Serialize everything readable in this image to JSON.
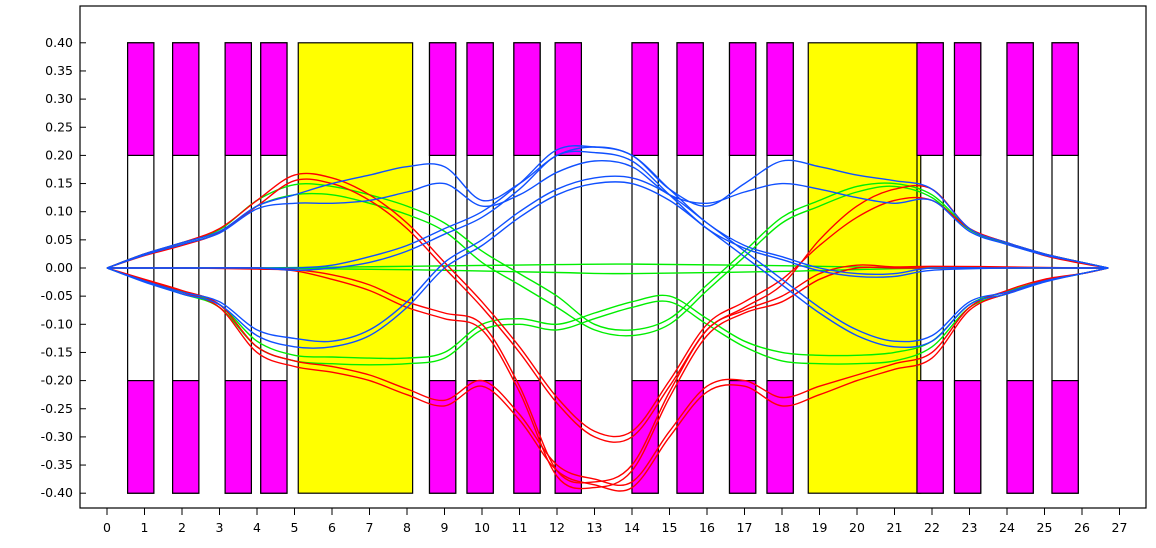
{
  "chart_data": {
    "type": "line",
    "title": "",
    "xlabel": "",
    "ylabel": "",
    "xlim": [
      -0.3,
      27.1
    ],
    "ylim": [
      -0.42,
      0.44
    ],
    "grid": false,
    "x_ticks": [
      0,
      1,
      2,
      3,
      4,
      5,
      6,
      7,
      8,
      9,
      10,
      11,
      12,
      13,
      14,
      15,
      16,
      17,
      18,
      19,
      20,
      21,
      22,
      23,
      24,
      25,
      26,
      27
    ],
    "y_ticks": [
      0.4,
      0.35,
      0.3,
      0.25,
      0.2,
      0.15,
      0.1,
      0.05,
      0.0,
      -0.05,
      -0.1,
      -0.15,
      -0.2,
      -0.25,
      -0.3,
      -0.35,
      -0.4
    ],
    "y_tick_labels": [
      "0.40",
      "0.35",
      "0.30",
      "0.25",
      "0.20",
      "0.15",
      "0.10",
      "0.05",
      "0.00",
      "-0.05",
      "-0.10",
      "-0.15",
      "-0.20",
      "-0.25",
      "-0.30",
      "-0.35",
      "-0.40"
    ],
    "element_colors": {
      "quadrupole": "#ff00ff",
      "dipole": "#ffff00",
      "outline": "#000000"
    },
    "quadrupoles": [
      [
        0.55,
        1.25
      ],
      [
        1.75,
        2.45
      ],
      [
        3.15,
        3.85
      ],
      [
        4.1,
        4.8
      ],
      [
        8.6,
        9.3
      ],
      [
        9.6,
        10.3
      ],
      [
        10.85,
        11.55
      ],
      [
        11.95,
        12.65
      ],
      [
        14.0,
        14.7
      ],
      [
        15.2,
        15.9
      ],
      [
        16.6,
        17.3
      ],
      [
        17.6,
        18.3
      ],
      [
        21.6,
        22.3
      ],
      [
        22.6,
        23.3
      ],
      [
        24.0,
        24.7
      ],
      [
        25.2,
        25.9
      ]
    ],
    "quad_pole_tip": 0.2,
    "quad_aperture": 0.4,
    "dipoles": [
      [
        5.1,
        8.15
      ],
      [
        18.7,
        21.7
      ]
    ],
    "dipole_half_height": 0.4,
    "series": [
      {
        "color": "#ff0000",
        "x": [
          0,
          1,
          2,
          3,
          4,
          5,
          6,
          7,
          8,
          9,
          10,
          11,
          12,
          13,
          14,
          15,
          16,
          17,
          18,
          19,
          20,
          21,
          22,
          23,
          24,
          25,
          26,
          26.7
        ],
        "values": [
          0,
          0.025,
          0.045,
          0.07,
          0.12,
          0.165,
          0.16,
          0.13,
          0.08,
          0.01,
          -0.06,
          -0.14,
          -0.23,
          -0.29,
          -0.29,
          -0.2,
          -0.1,
          -0.06,
          -0.02,
          0.04,
          0.09,
          0.12,
          0.12,
          0.07,
          0.045,
          0.025,
          0.01,
          0
        ]
      },
      {
        "color": "#ff0000",
        "x": [
          0,
          1,
          2,
          3,
          4,
          5,
          6,
          7,
          8,
          9,
          10,
          11,
          12,
          13,
          14,
          15,
          16,
          17,
          18,
          19,
          20,
          21,
          22,
          23,
          24,
          25,
          26,
          26.7
        ],
        "values": [
          0,
          0.022,
          0.04,
          0.063,
          0.11,
          0.155,
          0.15,
          0.12,
          0.07,
          0.0,
          -0.07,
          -0.15,
          -0.24,
          -0.3,
          -0.3,
          -0.21,
          -0.11,
          -0.07,
          -0.03,
          0.05,
          0.11,
          0.14,
          0.14,
          0.07,
          0.045,
          0.022,
          0.008,
          0
        ]
      },
      {
        "color": "#ff0000",
        "x": [
          0,
          1,
          2,
          3,
          4,
          5,
          6,
          7,
          8,
          9,
          10,
          11,
          12,
          13,
          14,
          15,
          16,
          17,
          18,
          19,
          20,
          21,
          22,
          23,
          24,
          25,
          26,
          26.7
        ],
        "values": [
          0,
          -0.02,
          -0.04,
          -0.065,
          -0.14,
          -0.165,
          -0.175,
          -0.19,
          -0.215,
          -0.235,
          -0.2,
          -0.26,
          -0.35,
          -0.375,
          -0.38,
          -0.29,
          -0.21,
          -0.2,
          -0.23,
          -0.21,
          -0.19,
          -0.17,
          -0.15,
          -0.07,
          -0.04,
          -0.02,
          -0.01,
          0
        ]
      },
      {
        "color": "#ff0000",
        "x": [
          0,
          1,
          2,
          3,
          4,
          5,
          6,
          7,
          8,
          9,
          10,
          11,
          12,
          13,
          14,
          15,
          16,
          17,
          18,
          19,
          20,
          21,
          22,
          23,
          24,
          25,
          26,
          26.7
        ],
        "values": [
          0,
          -0.022,
          -0.043,
          -0.07,
          -0.15,
          -0.175,
          -0.185,
          -0.2,
          -0.225,
          -0.245,
          -0.21,
          -0.27,
          -0.36,
          -0.385,
          -0.39,
          -0.3,
          -0.22,
          -0.21,
          -0.245,
          -0.225,
          -0.2,
          -0.18,
          -0.16,
          -0.075,
          -0.045,
          -0.022,
          -0.01,
          0
        ]
      },
      {
        "color": "#ff0000",
        "x": [
          0,
          2,
          4,
          5,
          6,
          7,
          8,
          9,
          10,
          11,
          12,
          13,
          14,
          15,
          16,
          17,
          18,
          19,
          20,
          21,
          22,
          24,
          26,
          26.7
        ],
        "values": [
          0,
          0.0,
          -0.002,
          -0.005,
          -0.02,
          -0.04,
          -0.07,
          -0.09,
          -0.11,
          -0.22,
          -0.37,
          -0.39,
          -0.36,
          -0.23,
          -0.12,
          -0.08,
          -0.06,
          -0.02,
          0.0,
          0.0,
          0.0,
          0.0,
          0.0,
          0
        ]
      },
      {
        "color": "#ff0000",
        "x": [
          0,
          2,
          4,
          5,
          6,
          7,
          8,
          9,
          10,
          11,
          12,
          13,
          14,
          15,
          16,
          17,
          18,
          19,
          20,
          21,
          22,
          24,
          26,
          26.7
        ],
        "values": [
          0,
          0.0,
          0.0,
          -0.003,
          -0.012,
          -0.03,
          -0.06,
          -0.08,
          -0.1,
          -0.21,
          -0.36,
          -0.38,
          -0.35,
          -0.22,
          -0.11,
          -0.075,
          -0.05,
          -0.01,
          0.005,
          0.002,
          0.003,
          0.002,
          0.0,
          0
        ]
      },
      {
        "color": "#00ee00",
        "x": [
          0,
          1,
          2,
          3,
          4,
          5,
          6,
          7,
          8,
          9,
          10,
          11,
          12,
          13,
          14,
          15,
          16,
          17,
          18,
          19,
          20,
          21,
          22,
          23,
          24,
          25,
          26,
          26.7
        ],
        "values": [
          0,
          0.025,
          0.045,
          0.068,
          0.12,
          0.148,
          0.145,
          0.13,
          0.11,
          0.08,
          0.03,
          -0.01,
          -0.05,
          -0.1,
          -0.11,
          -0.09,
          -0.03,
          0.03,
          0.09,
          0.12,
          0.145,
          0.15,
          0.13,
          0.07,
          0.045,
          0.025,
          0.01,
          0
        ]
      },
      {
        "color": "#00ee00",
        "x": [
          0,
          1,
          2,
          3,
          4,
          5,
          6,
          7,
          8,
          9,
          10,
          11,
          12,
          13,
          14,
          15,
          16,
          17,
          18,
          19,
          20,
          21,
          22,
          23,
          24,
          25,
          26,
          26.7
        ],
        "values": [
          0,
          0.023,
          0.042,
          0.063,
          0.11,
          0.13,
          0.13,
          0.115,
          0.095,
          0.065,
          0.01,
          -0.03,
          -0.07,
          -0.11,
          -0.12,
          -0.1,
          -0.04,
          0.02,
          0.08,
          0.11,
          0.135,
          0.145,
          0.125,
          0.068,
          0.043,
          0.023,
          0.01,
          0
        ]
      },
      {
        "color": "#00ee00",
        "x": [
          0,
          1,
          2,
          3,
          4,
          5,
          6,
          7,
          8,
          9,
          10,
          11,
          12,
          13,
          14,
          15,
          16,
          17,
          18,
          19,
          20,
          21,
          22,
          23,
          24,
          25,
          26,
          26.7
        ],
        "values": [
          0,
          -0.022,
          -0.042,
          -0.065,
          -0.13,
          -0.155,
          -0.158,
          -0.16,
          -0.16,
          -0.15,
          -0.1,
          -0.09,
          -0.1,
          -0.08,
          -0.06,
          -0.05,
          -0.09,
          -0.13,
          -0.15,
          -0.155,
          -0.155,
          -0.15,
          -0.13,
          -0.065,
          -0.042,
          -0.022,
          -0.01,
          0
        ]
      },
      {
        "color": "#00ee00",
        "x": [
          0,
          1,
          2,
          3,
          4,
          5,
          6,
          7,
          8,
          9,
          10,
          11,
          12,
          13,
          14,
          15,
          16,
          17,
          18,
          19,
          20,
          21,
          22,
          23,
          24,
          25,
          26,
          26.7
        ],
        "values": [
          0,
          -0.024,
          -0.046,
          -0.07,
          -0.14,
          -0.165,
          -0.17,
          -0.172,
          -0.17,
          -0.16,
          -0.11,
          -0.1,
          -0.11,
          -0.09,
          -0.07,
          -0.06,
          -0.1,
          -0.14,
          -0.165,
          -0.17,
          -0.17,
          -0.165,
          -0.14,
          -0.07,
          -0.046,
          -0.024,
          -0.01,
          0
        ]
      },
      {
        "color": "#00ee00",
        "x": [
          0,
          4,
          8,
          12,
          14,
          18,
          22,
          26,
          26.7
        ],
        "values": [
          0,
          0.0,
          -0.003,
          -0.008,
          -0.01,
          -0.006,
          0.0,
          0.0,
          0
        ]
      },
      {
        "color": "#00ee00",
        "x": [
          0,
          4,
          8,
          12,
          14,
          18,
          22,
          26,
          26.7
        ],
        "values": [
          0,
          0.0,
          0.003,
          0.006,
          0.007,
          0.004,
          0.0,
          0.0,
          0
        ]
      },
      {
        "color": "#1050ff",
        "x": [
          0,
          1,
          2,
          3,
          4,
          5,
          6,
          7,
          8,
          9,
          10,
          11,
          12,
          13,
          14,
          15,
          16,
          17,
          18,
          19,
          20,
          21,
          22,
          23,
          24,
          25,
          26,
          26.7
        ],
        "values": [
          0,
          0.025,
          0.045,
          0.065,
          0.11,
          0.13,
          0.15,
          0.165,
          0.18,
          0.18,
          0.12,
          0.15,
          0.2,
          0.215,
          0.2,
          0.14,
          0.11,
          0.15,
          0.19,
          0.18,
          0.165,
          0.155,
          0.14,
          0.07,
          0.045,
          0.025,
          0.01,
          0
        ]
      },
      {
        "color": "#1050ff",
        "x": [
          0,
          1,
          2,
          3,
          4,
          5,
          6,
          7,
          8,
          9,
          10,
          11,
          12,
          13,
          14,
          15,
          16,
          17,
          18,
          19,
          20,
          21,
          22,
          23,
          24,
          25,
          26,
          26.7
        ],
        "values": [
          0,
          0.023,
          0.042,
          0.062,
          0.105,
          0.115,
          0.115,
          0.12,
          0.135,
          0.15,
          0.11,
          0.13,
          0.17,
          0.19,
          0.18,
          0.13,
          0.115,
          0.135,
          0.15,
          0.14,
          0.125,
          0.115,
          0.12,
          0.065,
          0.042,
          0.023,
          0.01,
          0
        ]
      },
      {
        "color": "#1050ff",
        "x": [
          0,
          1,
          2,
          3,
          4,
          5,
          6,
          7,
          8,
          9,
          10,
          11,
          12,
          13,
          14,
          15,
          16,
          17,
          18,
          19,
          20,
          21,
          22,
          23,
          24,
          25,
          26,
          26.7
        ],
        "values": [
          0,
          -0.023,
          -0.043,
          -0.06,
          -0.11,
          -0.125,
          -0.13,
          -0.11,
          -0.06,
          0.01,
          0.05,
          0.1,
          0.14,
          0.16,
          0.16,
          0.13,
          0.08,
          0.03,
          -0.02,
          -0.07,
          -0.11,
          -0.13,
          -0.12,
          -0.06,
          -0.043,
          -0.023,
          -0.01,
          0
        ]
      },
      {
        "color": "#1050ff",
        "x": [
          0,
          1,
          2,
          3,
          4,
          5,
          6,
          7,
          8,
          9,
          10,
          11,
          12,
          13,
          14,
          15,
          16,
          17,
          18,
          19,
          20,
          21,
          22,
          23,
          24,
          25,
          26,
          26.7
        ],
        "values": [
          0,
          -0.025,
          -0.046,
          -0.065,
          -0.12,
          -0.14,
          -0.14,
          -0.12,
          -0.07,
          0.0,
          0.04,
          0.09,
          0.13,
          0.15,
          0.15,
          0.12,
          0.07,
          0.02,
          -0.03,
          -0.08,
          -0.12,
          -0.14,
          -0.13,
          -0.065,
          -0.046,
          -0.025,
          -0.01,
          0
        ]
      },
      {
        "color": "#1050ff",
        "x": [
          0,
          2,
          4,
          5,
          6,
          7,
          8,
          9,
          10,
          11,
          12,
          13,
          14,
          15,
          16,
          17,
          18,
          19,
          20,
          21,
          22,
          24,
          26,
          26.7
        ],
        "values": [
          0,
          0.0,
          0.0,
          0.0,
          0.005,
          0.02,
          0.04,
          0.07,
          0.1,
          0.15,
          0.21,
          0.215,
          0.2,
          0.14,
          0.08,
          0.04,
          0.02,
          0.0,
          -0.01,
          -0.01,
          0.0,
          0.0,
          0.0,
          0
        ]
      },
      {
        "color": "#1050ff",
        "x": [
          0,
          2,
          4,
          5,
          6,
          7,
          8,
          9,
          10,
          11,
          12,
          13,
          14,
          15,
          16,
          17,
          18,
          19,
          20,
          21,
          22,
          24,
          26,
          26.7
        ],
        "values": [
          0,
          0.0,
          0.0,
          -0.004,
          0.0,
          0.01,
          0.03,
          0.06,
          0.09,
          0.14,
          0.2,
          0.205,
          0.19,
          0.13,
          0.07,
          0.035,
          0.015,
          -0.005,
          -0.015,
          -0.015,
          -0.004,
          0.0,
          0.0,
          0
        ]
      }
    ]
  }
}
